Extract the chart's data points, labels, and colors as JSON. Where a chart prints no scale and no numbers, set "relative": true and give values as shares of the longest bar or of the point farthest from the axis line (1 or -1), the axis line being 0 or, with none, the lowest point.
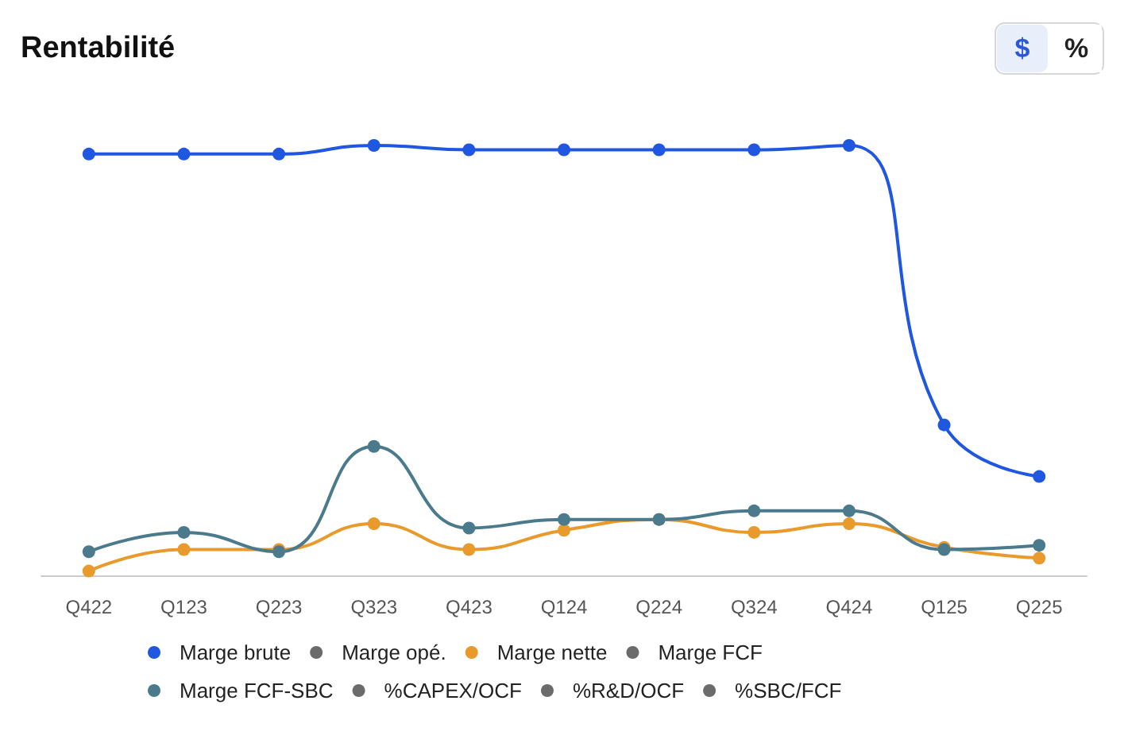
{
  "chart_data": {
    "type": "line",
    "title": "Rentabilité",
    "relative": true,
    "grid": false,
    "legend": "bottom",
    "marker": "circle",
    "line_style": "solid",
    "annotations": [
      "$",
      "%"
    ],
    "categories": [
      "Q422",
      "Q123",
      "Q223",
      "Q323",
      "Q423",
      "Q124",
      "Q224",
      "Q324",
      "Q424",
      "Q125",
      "Q225"
    ],
    "series": [
      {
        "name": "Marge brute",
        "color": "#1f57e0",
        "values": [
          0.98,
          0.98,
          0.98,
          1,
          0.99,
          0.99,
          0.99,
          0.99,
          1,
          0.35,
          0.23
        ]
      },
      {
        "name": "Marge opé.",
        "color": "#6b6b6b",
        "values": [
          null,
          null,
          null,
          null,
          null,
          null,
          null,
          null,
          null,
          null,
          null
        ]
      },
      {
        "name": "Marge nette",
        "color": "#e89a2c",
        "values": [
          0.01,
          0.06,
          0.06,
          0.12,
          0.06,
          0.105,
          0.13,
          0.1,
          0.12,
          0.065,
          0.04
        ]
      },
      {
        "name": "Marge FCF",
        "color": "#6b6b6b",
        "values": [
          null,
          null,
          null,
          null,
          null,
          null,
          null,
          null,
          null,
          null,
          null
        ]
      },
      {
        "name": "Marge FCF-SBC",
        "color": "#4a7a8c",
        "values": [
          0.055,
          0.1,
          0.055,
          0.3,
          0.11,
          0.13,
          0.13,
          0.15,
          0.15,
          0.06,
          0.07
        ]
      },
      {
        "name": "%CAPEX/OCF",
        "color": "#6b6b6b",
        "values": [
          null,
          null,
          null,
          null,
          null,
          null,
          null,
          null,
          null,
          null,
          null
        ]
      },
      {
        "name": "%R&D/OCF",
        "color": "#6b6b6b",
        "values": [
          null,
          null,
          null,
          null,
          null,
          null,
          null,
          null,
          null,
          null,
          null
        ]
      },
      {
        "name": "%SBC/FCF",
        "color": "#6b6b6b",
        "values": [
          null,
          null,
          null,
          null,
          null,
          null,
          null,
          null,
          null,
          null,
          null
        ]
      }
    ]
  }
}
